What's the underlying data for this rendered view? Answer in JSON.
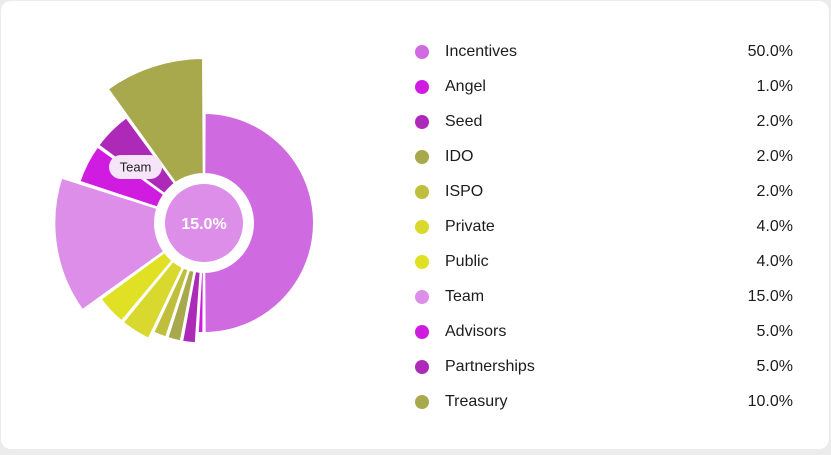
{
  "chart_data": {
    "type": "pie",
    "variant": "polar-area",
    "categories": [
      "Incentives",
      "Angel",
      "Seed",
      "IDO",
      "ISPO",
      "Private",
      "Public",
      "Team",
      "Advisors",
      "Partnerships",
      "Treasury"
    ],
    "values": [
      50.0,
      1.0,
      2.0,
      2.0,
      2.0,
      4.0,
      4.0,
      15.0,
      5.0,
      5.0,
      10.0
    ],
    "value_labels": [
      "50.0%",
      "1.0%",
      "2.0%",
      "2.0%",
      "2.0%",
      "4.0%",
      "4.0%",
      "15.0%",
      "5.0%",
      "5.0%",
      "10.0%"
    ],
    "colors": [
      "#cf6ae0",
      "#d01ce0",
      "#ad2ab8",
      "#a8a84d",
      "#bfbf3d",
      "#d8d82e",
      "#e0e024",
      "#dc8ee8",
      "#d01ce0",
      "#ad2ab8",
      "#a8a84d"
    ],
    "highlighted": "Team",
    "center_label": "15.0%",
    "tooltip": "Team",
    "legend_position": "right"
  }
}
